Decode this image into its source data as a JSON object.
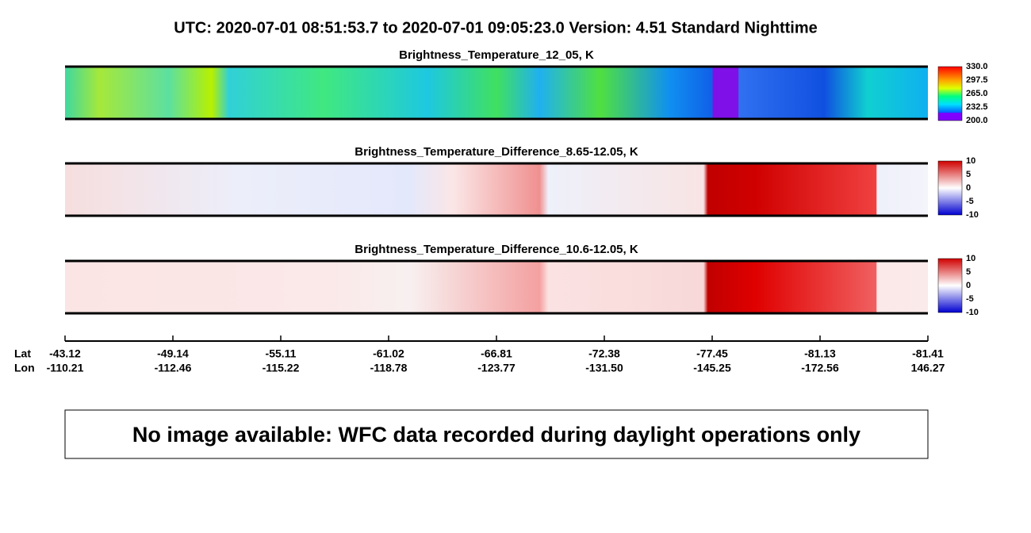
{
  "title": "UTC:  2020-07-01   08:51:53.7  to  2020-07-01   09:05:23.0    Version: 4.51  Standard Nighttime",
  "panels": [
    {
      "title": "Brightness_Temperature_12_05, K",
      "colorbar_labels": [
        "330.0",
        "297.5",
        "265.0",
        "232.5",
        "200.0"
      ]
    },
    {
      "title": "Brightness_Temperature_Difference_8.65-12.05, K",
      "colorbar_labels": [
        "10",
        "5",
        "0",
        "-5",
        "-10"
      ]
    },
    {
      "title": "Brightness_Temperature_Difference_10.6-12.05, K",
      "colorbar_labels": [
        "10",
        "5",
        "0",
        "-5",
        "-10"
      ]
    }
  ],
  "axis": {
    "lat_label": "Lat",
    "lon_label": "Lon",
    "lat": [
      "-43.12",
      "-49.14",
      "-55.11",
      "-61.02",
      "-66.81",
      "-72.38",
      "-77.45",
      "-81.13",
      "-81.41"
    ],
    "lon": [
      "-110.21",
      "-112.46",
      "-115.22",
      "-118.78",
      "-123.77",
      "-131.50",
      "-145.25",
      "-172.56",
      "146.27"
    ]
  },
  "notice": "No image available: WFC data recorded during daylight operations only"
}
